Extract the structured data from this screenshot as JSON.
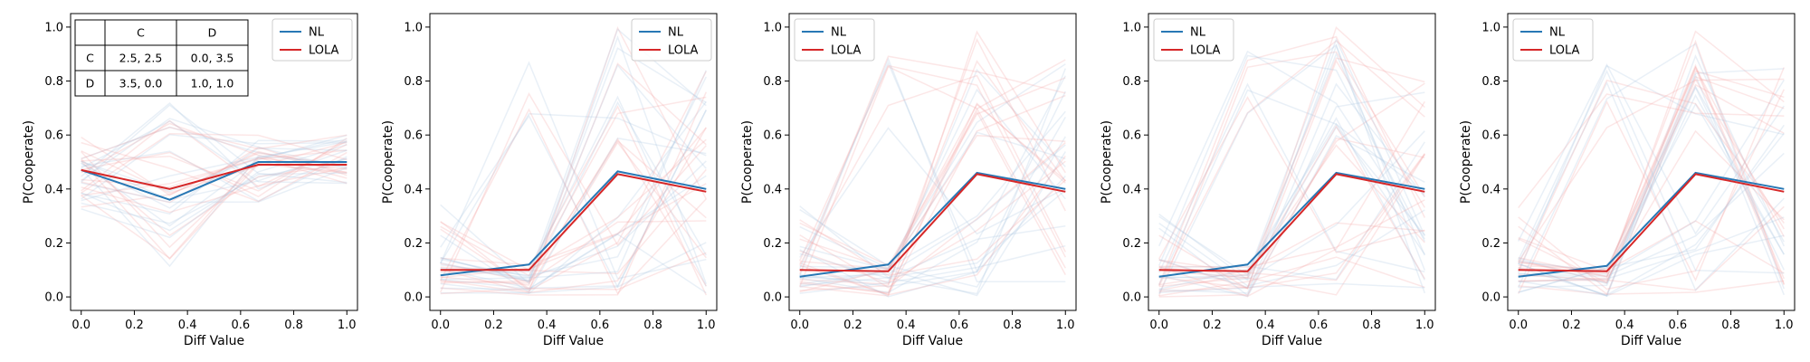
{
  "chart_data": [
    {
      "type": "line",
      "xlabel": "Diff Value",
      "ylabel": "P(Cooperate)",
      "xlim": [
        -0.04,
        1.04
      ],
      "ylim": [
        -0.05,
        1.05
      ],
      "xticks": [
        "0.0",
        "0.2",
        "0.4",
        "0.6",
        "0.8",
        "1.0"
      ],
      "yticks": [
        "0.0",
        "0.2",
        "0.4",
        "0.6",
        "0.8",
        "1.0"
      ],
      "legend": "top-right",
      "x": [
        0,
        0.333,
        0.667,
        1.0
      ],
      "series": [
        {
          "name": "NL",
          "color": "#2878b5",
          "values": [
            0.47,
            0.36,
            0.5,
            0.5
          ]
        },
        {
          "name": "LOLA",
          "color": "#d62728",
          "values": [
            0.47,
            0.4,
            0.49,
            0.49
          ]
        }
      ],
      "payoff_table": {
        "columns": [
          "",
          "C",
          "D"
        ],
        "rows": [
          [
            "C",
            "2.5, 2.5",
            "0.0, 3.5"
          ],
          [
            "D",
            "3.5, 0.0",
            "1.0, 1.0"
          ]
        ]
      }
    },
    {
      "type": "line",
      "xlabel": "Diff Value",
      "ylabel": "P(Cooperate)",
      "xlim": [
        -0.04,
        1.04
      ],
      "ylim": [
        -0.05,
        1.05
      ],
      "xticks": [
        "0.0",
        "0.2",
        "0.4",
        "0.6",
        "0.8",
        "1.0"
      ],
      "yticks": [
        "0.0",
        "0.2",
        "0.4",
        "0.6",
        "0.8",
        "1.0"
      ],
      "legend": "top-right",
      "x": [
        0,
        0.333,
        0.667,
        1.0
      ],
      "series": [
        {
          "name": "NL",
          "color": "#2878b5",
          "values": [
            0.08,
            0.12,
            0.465,
            0.4
          ]
        },
        {
          "name": "LOLA",
          "color": "#d62728",
          "values": [
            0.1,
            0.1,
            0.455,
            0.39
          ]
        }
      ]
    },
    {
      "type": "line",
      "xlabel": "Diff Value",
      "ylabel": "P(Cooperate)",
      "xlim": [
        -0.04,
        1.04
      ],
      "ylim": [
        -0.05,
        1.05
      ],
      "xticks": [
        "0.0",
        "0.2",
        "0.4",
        "0.6",
        "0.8",
        "1.0"
      ],
      "yticks": [
        "0.0",
        "0.2",
        "0.4",
        "0.6",
        "0.8",
        "1.0"
      ],
      "legend": "top-left",
      "x": [
        0,
        0.333,
        0.667,
        1.0
      ],
      "series": [
        {
          "name": "NL",
          "color": "#2878b5",
          "values": [
            0.075,
            0.12,
            0.46,
            0.4
          ]
        },
        {
          "name": "LOLA",
          "color": "#d62728",
          "values": [
            0.1,
            0.095,
            0.455,
            0.39
          ]
        }
      ]
    },
    {
      "type": "line",
      "xlabel": "Diff Value",
      "ylabel": "P(Cooperate)",
      "xlim": [
        -0.04,
        1.04
      ],
      "ylim": [
        -0.05,
        1.05
      ],
      "xticks": [
        "0.0",
        "0.2",
        "0.4",
        "0.6",
        "0.8",
        "1.0"
      ],
      "yticks": [
        "0.0",
        "0.2",
        "0.4",
        "0.6",
        "0.8",
        "1.0"
      ],
      "legend": "top-left",
      "x": [
        0,
        0.333,
        0.667,
        1.0
      ],
      "series": [
        {
          "name": "NL",
          "color": "#2878b5",
          "values": [
            0.075,
            0.12,
            0.46,
            0.4
          ]
        },
        {
          "name": "LOLA",
          "color": "#d62728",
          "values": [
            0.1,
            0.095,
            0.455,
            0.39
          ]
        }
      ]
    },
    {
      "type": "line",
      "xlabel": "Diff Value",
      "ylabel": "P(Cooperate)",
      "xlim": [
        -0.04,
        1.04
      ],
      "ylim": [
        -0.05,
        1.05
      ],
      "xticks": [
        "0.0",
        "0.2",
        "0.4",
        "0.6",
        "0.8",
        "1.0"
      ],
      "yticks": [
        "0.0",
        "0.2",
        "0.4",
        "0.6",
        "0.8",
        "1.0"
      ],
      "legend": "top-left",
      "x": [
        0,
        0.333,
        0.667,
        1.0
      ],
      "series": [
        {
          "name": "NL",
          "color": "#2878b5",
          "values": [
            0.075,
            0.115,
            0.46,
            0.4
          ]
        },
        {
          "name": "LOLA",
          "color": "#d62728",
          "values": [
            0.1,
            0.095,
            0.455,
            0.39
          ]
        }
      ]
    }
  ]
}
